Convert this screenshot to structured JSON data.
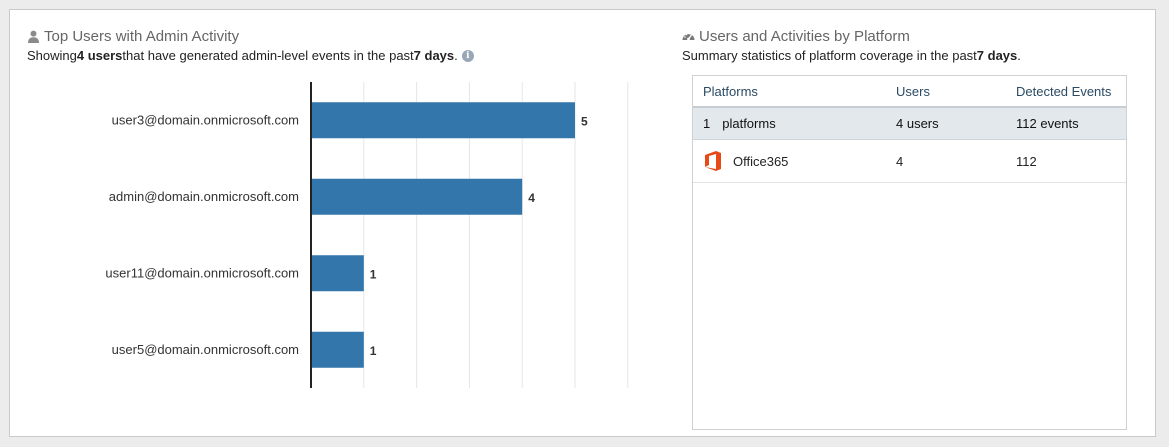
{
  "left_panel": {
    "title": "Top Users with Admin Activity",
    "title_icon": "user-icon",
    "subtitle_pre": "Showing ",
    "subtitle_bold1": "4 users",
    "subtitle_mid": " that have generated admin-level events in the past ",
    "subtitle_bold2": "7 days",
    "subtitle_post": ".",
    "info_icon": "info-circle-icon",
    "bar_color": "#3276ab"
  },
  "chart_data": {
    "type": "bar",
    "orientation": "horizontal",
    "categories": [
      "user3@domain.onmicrosoft.com",
      "admin@domain.onmicrosoft.com",
      "user11@domain.onmicrosoft.com",
      "user5@domain.onmicrosoft.com"
    ],
    "values": [
      5,
      4,
      1,
      1
    ],
    "xlim": [
      0,
      6
    ],
    "grid": true
  },
  "right_panel": {
    "title": "Users and Activities by Platform",
    "title_icon": "dashboard-icon",
    "subtitle_pre": "Summary statistics of platform coverage in the past ",
    "subtitle_bold": "7 days",
    "subtitle_post": ".",
    "table": {
      "headers": [
        "Platforms",
        "Users",
        "Detected Events"
      ],
      "summary": {
        "count": "1",
        "platforms": "platforms",
        "users": "4 users",
        "events": "112 events"
      },
      "rows": [
        {
          "icon": "office365-icon",
          "platform": "Office365",
          "users": "4",
          "events": "112"
        }
      ]
    }
  }
}
